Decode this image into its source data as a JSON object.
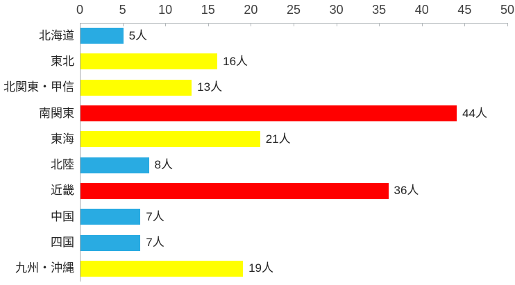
{
  "chart_data": {
    "type": "bar",
    "orientation": "horizontal",
    "title": "",
    "unit": "人",
    "categories": [
      "北海道",
      "東北",
      "北関東・甲信",
      "南関東",
      "東海",
      "北陸",
      "近畿",
      "中国",
      "四国",
      "九州・沖縄"
    ],
    "values": [
      5,
      16,
      13,
      44,
      21,
      8,
      36,
      7,
      7,
      19
    ],
    "value_labels": [
      "5人",
      "16人",
      "13人",
      "44人",
      "21人",
      "8人",
      "36人",
      "7人",
      "7人",
      "19人"
    ],
    "bar_colors": [
      "#29ABE2",
      "#FFFF00",
      "#FFFF00",
      "#FF0000",
      "#FFFF00",
      "#29ABE2",
      "#FF0000",
      "#29ABE2",
      "#29ABE2",
      "#FFFF00"
    ],
    "xlim": [
      0,
      50
    ],
    "xticks": [
      0,
      5,
      10,
      15,
      20,
      25,
      30,
      35,
      40,
      45,
      50
    ],
    "xtick_labels": [
      "0",
      "5",
      "10",
      "15",
      "20",
      "25",
      "30",
      "35",
      "40",
      "45",
      "50"
    ],
    "axis_position": "top",
    "grid": false,
    "legend": "none",
    "axis_line_color": "#b3b8bb",
    "text_color": "#262626"
  }
}
